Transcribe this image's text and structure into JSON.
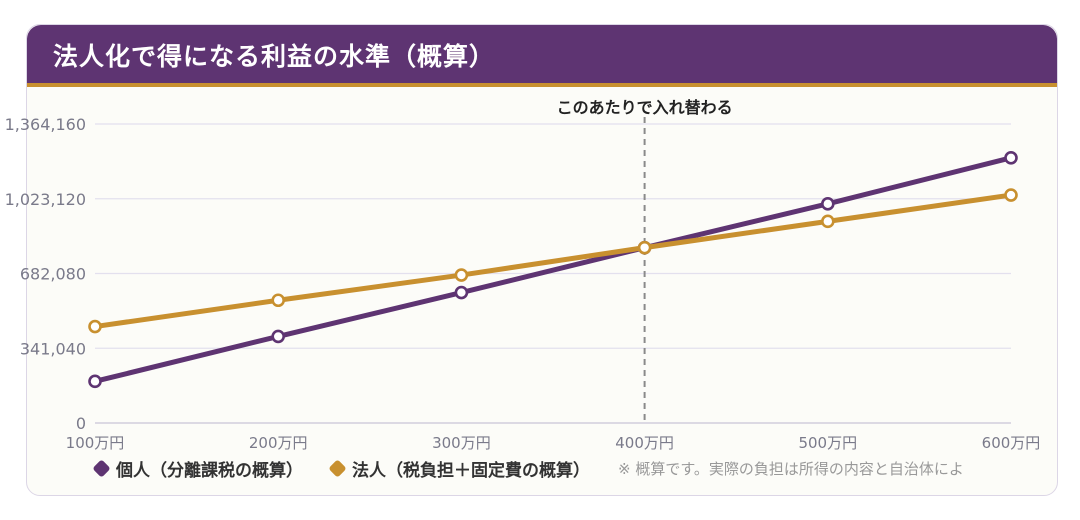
{
  "header": {
    "title": "法人化で得になる利益の水準（概算）"
  },
  "chart_data": {
    "type": "line",
    "title": "法人化で得になる利益の水準（概算）",
    "categories": [
      "100万円",
      "200万円",
      "300万円",
      "400万円",
      "500万円",
      "600万円"
    ],
    "y_ticks": [
      {
        "value": 0,
        "label": "0"
      },
      {
        "value": 341040,
        "label": "341,040"
      },
      {
        "value": 682080,
        "label": "682,080"
      },
      {
        "value": 1023120,
        "label": "1,023,120"
      },
      {
        "value": 1364160,
        "label": "1,364,160"
      }
    ],
    "ylim": [
      0,
      1364160
    ],
    "grid": true,
    "legend_position": "bottom-left",
    "series": [
      {
        "name": "個人（分離課税の概算）",
        "color": "#5e3472",
        "values": [
          190000,
          395000,
          595000,
          800000,
          1000000,
          1210000
        ]
      },
      {
        "name": "法人（税負担＋固定費の概算）",
        "color": "#c8902f",
        "values": [
          440000,
          560000,
          675000,
          800000,
          920000,
          1040000
        ]
      }
    ],
    "annotation": {
      "label": "このあたりで入れ替わる",
      "category_index": 3
    },
    "note": "※ 概算です。実際の負担は所得の内容と自治体によ"
  }
}
